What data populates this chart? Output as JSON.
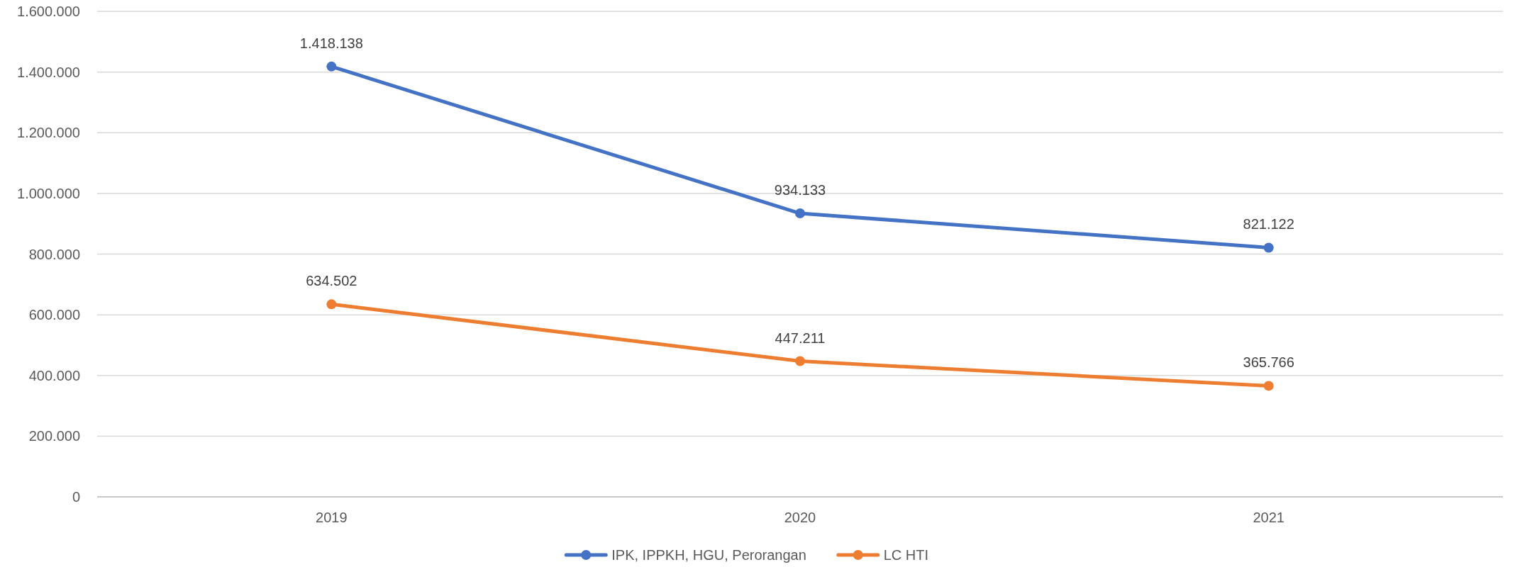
{
  "chart_data": {
    "type": "line",
    "categories": [
      "2019",
      "2020",
      "2021"
    ],
    "series": [
      {
        "name": "IPK, IPPKH, HGU, Perorangan",
        "color": "#4472c4",
        "values": [
          1418138,
          934133,
          821122
        ],
        "value_labels": [
          "1.418.138",
          "934.133",
          "821.122"
        ]
      },
      {
        "name": "LC HTI",
        "color": "#ed7d31",
        "values": [
          634502,
          447211,
          365766
        ],
        "value_labels": [
          "634.502",
          "447.211",
          "365.766"
        ]
      }
    ],
    "ylim": [
      0,
      1600000
    ],
    "yticks": [
      {
        "value": 0,
        "label": "0"
      },
      {
        "value": 200000,
        "label": "200.000"
      },
      {
        "value": 400000,
        "label": "400.000"
      },
      {
        "value": 600000,
        "label": "600.000"
      },
      {
        "value": 800000,
        "label": "800.000"
      },
      {
        "value": 1000000,
        "label": "1.000.000"
      },
      {
        "value": 1200000,
        "label": "1.200.000"
      },
      {
        "value": 1400000,
        "label": "1.400.000"
      },
      {
        "value": 1600000,
        "label": "1.600.000"
      }
    ],
    "grid": "y",
    "legend": "bottom",
    "marker": "circle",
    "line_style": "solid"
  }
}
